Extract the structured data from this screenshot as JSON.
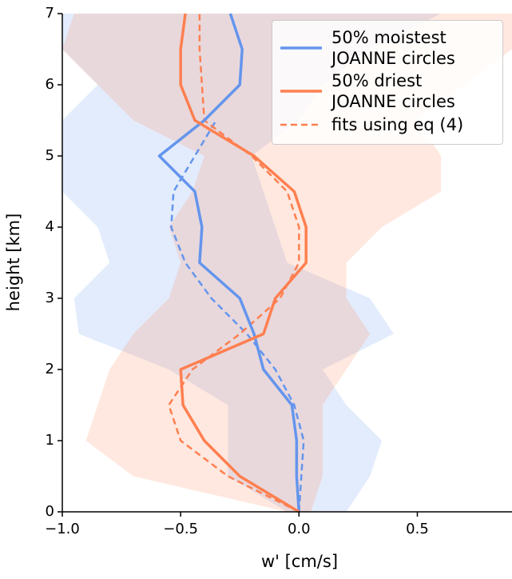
{
  "chart_data": {
    "type": "profile",
    "xlabel": "w' [cm/s]",
    "ylabel": "height [km]",
    "xlim": [
      -1.0,
      0.9
    ],
    "ylim": [
      0,
      7
    ],
    "xticks": [
      {
        "value": -1.0,
        "label": "−1.0"
      },
      {
        "value": -0.5,
        "label": "−0.5"
      },
      {
        "value": 0,
        "label": "0.0"
      },
      0.5
    ],
    "yticks": [
      0,
      1,
      2,
      3,
      4,
      5,
      6,
      7
    ],
    "y": [
      0,
      0.5,
      1,
      1.5,
      2,
      2.5,
      3,
      3.5,
      4,
      4.5,
      5,
      5.5,
      6,
      6.5,
      7
    ],
    "series": [
      {
        "name": "50% moistest JOANNE circles",
        "color": "#6495ED",
        "values": [
          0,
          -0.01,
          -0.01,
          -0.03,
          -0.15,
          -0.19,
          -0.25,
          -0.42,
          -0.41,
          -0.44,
          -0.59,
          -0.4,
          -0.25,
          -0.24,
          -0.29
        ],
        "lower": [
          -0.05,
          -0.3,
          -0.3,
          -0.3,
          -0.55,
          -0.93,
          -0.95,
          -0.8,
          -0.85,
          -1.0,
          -1.0,
          -1.0,
          -0.85,
          -1.0,
          -1.0
        ],
        "upper": [
          0.2,
          0.3,
          0.35,
          0.2,
          0.1,
          0.4,
          0.3,
          -0.05,
          -0.1,
          -0.15,
          -0.2,
          0.0,
          0.1,
          0.3,
          0.6
        ]
      },
      {
        "name": "50% driest JOANNE circles",
        "color": "#FF7F50",
        "values": [
          0,
          -0.25,
          -0.4,
          -0.49,
          -0.5,
          -0.15,
          -0.1,
          0.03,
          0.03,
          -0.02,
          -0.19,
          -0.44,
          -0.5,
          -0.5,
          -0.48
        ],
        "lower": [
          -0.05,
          -0.7,
          -0.9,
          -0.85,
          -0.8,
          -0.7,
          -0.55,
          -0.5,
          -0.55,
          -0.45,
          -0.4,
          -0.7,
          -0.85,
          -1.0,
          -0.95
        ],
        "upper": [
          0.05,
          0.1,
          0.1,
          0.1,
          0.2,
          0.3,
          0.2,
          0.2,
          0.35,
          0.6,
          0.6,
          0.5,
          0.7,
          0.9,
          0.9
        ]
      }
    ],
    "fits": {
      "name": "fits using eq (4)",
      "color": "#FF7F50",
      "series": [
        {
          "color": "#6495ED",
          "values": [
            0,
            0.01,
            0.02,
            -0.02,
            -0.1,
            -0.22,
            -0.37,
            -0.48,
            -0.54,
            -0.53,
            -0.44,
            -0.35,
            null,
            null,
            null
          ]
        },
        {
          "color": "#FF7F50",
          "values": [
            0,
            -0.3,
            -0.5,
            -0.55,
            -0.45,
            -0.25,
            -0.08,
            0.0,
            0.0,
            -0.05,
            -0.2,
            -0.4,
            -0.41,
            -0.42,
            -0.42
          ]
        }
      ]
    }
  }
}
